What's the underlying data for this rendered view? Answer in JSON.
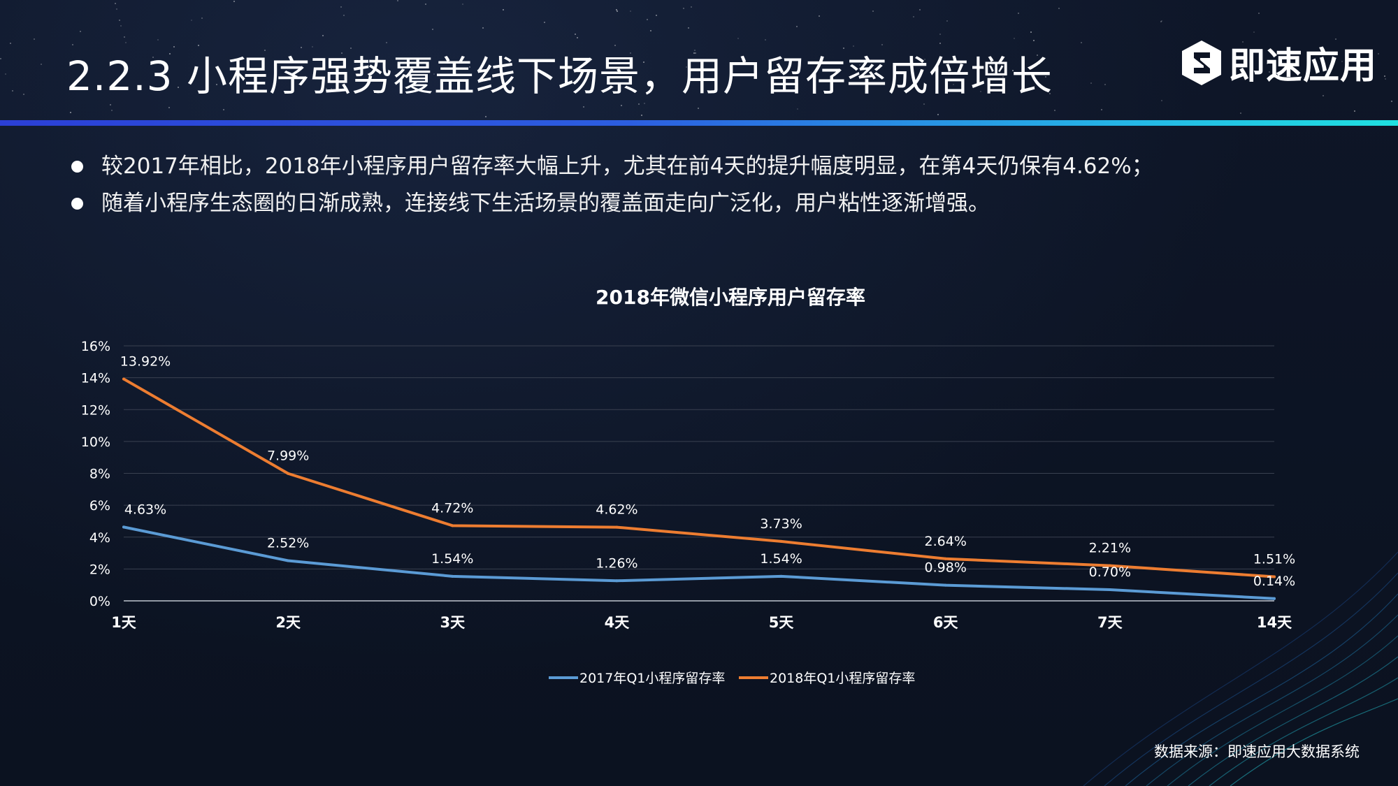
{
  "header": {
    "title": "2.2.3  小程序强势覆盖线下场景，用户留存率成倍增长",
    "logo_text": "即速应用",
    "logo_icon": "brand-e-hexagon-icon"
  },
  "bullets": [
    "较2017年相比，2018年小程序用户留存率大幅上升，尤其在前4天的提升幅度明显，在第4天仍保有4.62%；",
    "随着小程序生态圈的日渐成熟，连接线下生活场景的覆盖面走向广泛化，用户粘性逐渐增强。"
  ],
  "footer": {
    "source": "数据来源：即速应用大数据系统"
  },
  "chart_data": {
    "type": "line",
    "title": "2018年微信小程序用户留存率",
    "categories": [
      "1天",
      "2天",
      "3天",
      "4天",
      "5天",
      "6天",
      "7天",
      "14天"
    ],
    "yticks": [
      "0%",
      "2%",
      "4%",
      "6%",
      "8%",
      "10%",
      "12%",
      "14%",
      "16%"
    ],
    "ylim": [
      0,
      16
    ],
    "xlabel": "",
    "ylabel": "",
    "grid": true,
    "legend_position": "bottom",
    "series": [
      {
        "name": "2017年Q1小程序留存率",
        "color": "#5b9bd5",
        "values": [
          4.63,
          2.52,
          1.54,
          1.26,
          1.54,
          0.98,
          0.7,
          0.14
        ],
        "labels": [
          "4.63%",
          "2.52%",
          "1.54%",
          "1.26%",
          "1.54%",
          "0.98%",
          "0.70%",
          "0.14%"
        ]
      },
      {
        "name": "2018年Q1小程序留存率",
        "color": "#ed7d31",
        "values": [
          13.92,
          7.99,
          4.72,
          4.62,
          3.73,
          2.64,
          2.21,
          1.51
        ],
        "labels": [
          "13.92%",
          "7.99%",
          "4.72%",
          "4.62%",
          "3.73%",
          "2.64%",
          "2.21%",
          "1.51%"
        ]
      }
    ]
  }
}
